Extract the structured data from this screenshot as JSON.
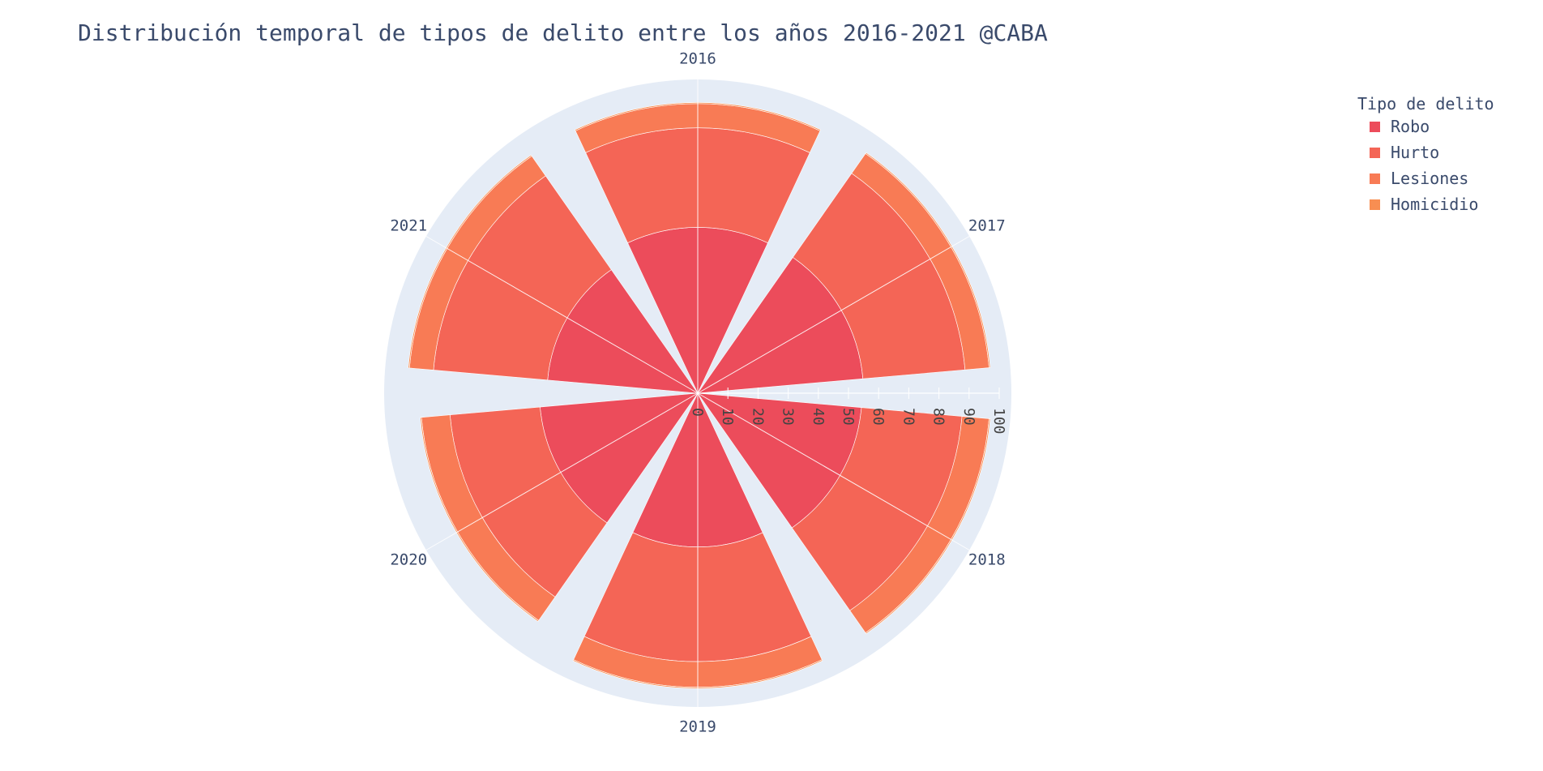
{
  "chart_data": {
    "type": "barpolar",
    "title": "Distribución temporal de tipos de delito entre los años 2016-2021 @CABA",
    "categories": [
      "2016",
      "2017",
      "2018",
      "2019",
      "2020",
      "2021"
    ],
    "radial_ticks": [
      "0",
      "10",
      "20",
      "30",
      "40",
      "50",
      "60",
      "70",
      "80",
      "90",
      "100"
    ],
    "rlim": [
      0,
      100
    ],
    "stacked": true,
    "series": [
      {
        "name": "Robo",
        "color": "#ec4c5b",
        "values": [
          55,
          55,
          54.5,
          51,
          52.5,
          50
        ]
      },
      {
        "name": "Hurto",
        "color": "#f46556",
        "values": [
          33,
          34,
          33.5,
          38,
          30,
          38
        ]
      },
      {
        "name": "Lesiones",
        "color": "#f87b55",
        "values": [
          8,
          8,
          9,
          8.5,
          9.5,
          8
        ]
      },
      {
        "name": "Homicidio",
        "color": "#f88e52",
        "values": [
          0.4,
          0.4,
          0.4,
          0.4,
          0.4,
          0.4
        ]
      }
    ],
    "legend": {
      "title": "Tipo de delito",
      "placement": "top-right"
    },
    "polar_background": "#e5ecf6",
    "grid": true
  }
}
